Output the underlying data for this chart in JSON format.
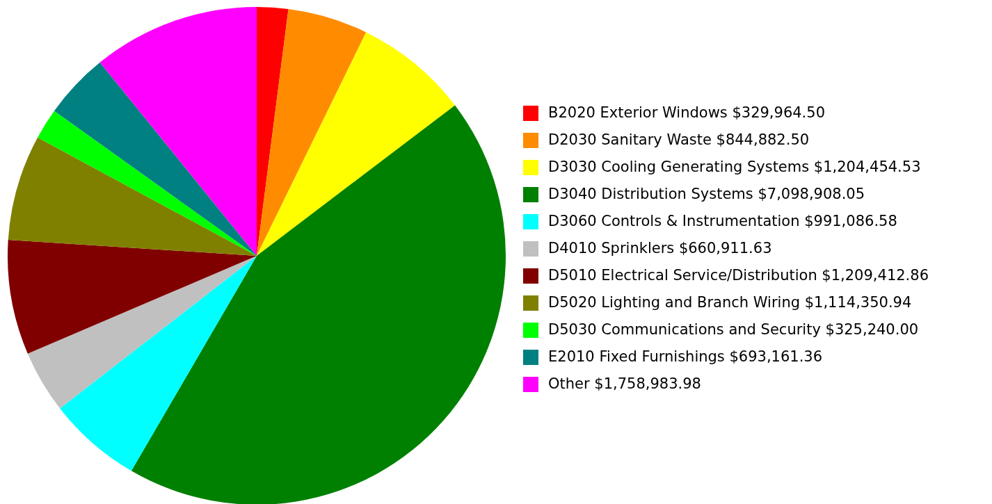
{
  "chart_data": {
    "type": "pie",
    "legend": "right",
    "categories": [
      "B2020 Exterior Windows $329,964.50",
      "D2030 Sanitary Waste $844,882.50",
      "D3030 Cooling Generating Systems $1,204,454.53",
      "D3040 Distribution Systems $7,098,908.05",
      "D3060 Controls & Instrumentation $991,086.58",
      "D4010 Sprinklers $660,911.63",
      "D5010 Electrical Service/Distribution $1,209,412.86",
      "D5020 Lighting and Branch Wiring $1,114,350.94",
      "D5030 Communications and Security $325,240.00",
      "E2010 Fixed Furnishings $693,161.36",
      "Other $1,758,983.98"
    ],
    "values": [
      329964.5,
      844882.5,
      1204454.53,
      7098908.05,
      991086.58,
      660911.63,
      1209412.86,
      1114350.94,
      325240.0,
      693161.36,
      1758983.98
    ],
    "colors": [
      "#ff0000",
      "#ff8c00",
      "#ffff00",
      "#008000",
      "#00ffff",
      "#c0c0c0",
      "#800000",
      "#808000",
      "#00ff00",
      "#008080",
      "#ff00ff"
    ]
  }
}
